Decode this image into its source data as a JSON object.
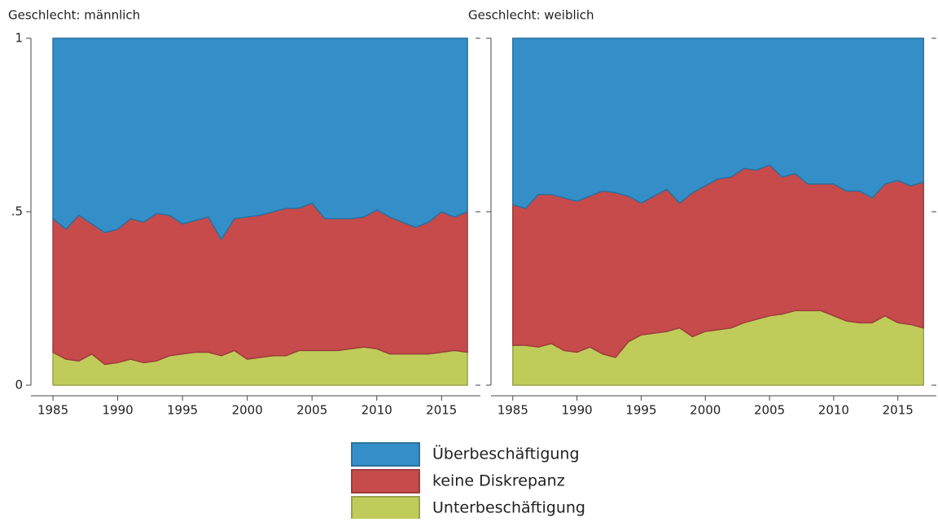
{
  "chart_data": [
    {
      "type": "area",
      "stacked": true,
      "title": "Geschlecht: männlich",
      "x": [
        1985,
        1986,
        1987,
        1988,
        1989,
        1990,
        1991,
        1992,
        1993,
        1994,
        1995,
        1996,
        1997,
        1998,
        1999,
        2000,
        2001,
        2002,
        2003,
        2004,
        2005,
        2006,
        2007,
        2008,
        2009,
        2010,
        2011,
        2012,
        2013,
        2014,
        2015,
        2016,
        2017
      ],
      "series": [
        {
          "name": "Unterbeschäftigung",
          "color": "#c0cc5a",
          "values": [
            0.095,
            0.075,
            0.07,
            0.09,
            0.06,
            0.065,
            0.075,
            0.065,
            0.07,
            0.085,
            0.09,
            0.095,
            0.095,
            0.085,
            0.1,
            0.075,
            0.08,
            0.085,
            0.085,
            0.1,
            0.1,
            0.1,
            0.1,
            0.105,
            0.11,
            0.105,
            0.09,
            0.09,
            0.09,
            0.09,
            0.095,
            0.1,
            0.095
          ]
        },
        {
          "name": "keine Diskrepanz",
          "color": "#c74b4b",
          "values": [
            0.385,
            0.375,
            0.42,
            0.375,
            0.38,
            0.385,
            0.405,
            0.405,
            0.425,
            0.405,
            0.375,
            0.38,
            0.39,
            0.335,
            0.38,
            0.41,
            0.41,
            0.415,
            0.425,
            0.41,
            0.425,
            0.38,
            0.38,
            0.375,
            0.375,
            0.4,
            0.395,
            0.38,
            0.365,
            0.38,
            0.405,
            0.385,
            0.405
          ]
        },
        {
          "name": "Überbeschäftigung",
          "color": "#348fc8",
          "values": [
            0.52,
            0.55,
            0.51,
            0.535,
            0.56,
            0.55,
            0.52,
            0.53,
            0.505,
            0.51,
            0.535,
            0.525,
            0.515,
            0.58,
            0.52,
            0.515,
            0.51,
            0.5,
            0.49,
            0.49,
            0.475,
            0.52,
            0.52,
            0.52,
            0.515,
            0.495,
            0.515,
            0.53,
            0.545,
            0.53,
            0.5,
            0.515,
            0.5
          ]
        }
      ],
      "xlim": [
        1983.3,
        2018
      ],
      "xticks": [
        1985,
        1990,
        1995,
        2000,
        2005,
        2010,
        2015
      ],
      "ylim": [
        0,
        1
      ],
      "yticks": [
        0,
        {
          "value": 0.5,
          "label": ".5"
        },
        1
      ]
    },
    {
      "type": "area",
      "stacked": true,
      "title": "Geschlecht: weiblich",
      "x": [
        1985,
        1986,
        1987,
        1988,
        1989,
        1990,
        1991,
        1992,
        1993,
        1994,
        1995,
        1996,
        1997,
        1998,
        1999,
        2000,
        2001,
        2002,
        2003,
        2004,
        2005,
        2006,
        2007,
        2008,
        2009,
        2010,
        2011,
        2012,
        2013,
        2014,
        2015,
        2016,
        2017
      ],
      "series": [
        {
          "color": "#c0cc5a",
          "values": [
            0.115,
            0.115,
            0.11,
            0.12,
            0.1,
            0.095,
            0.11,
            0.09,
            0.08,
            0.125,
            0.145,
            0.15,
            0.155,
            0.165,
            0.14,
            0.155,
            0.16,
            0.165,
            0.18,
            0.19,
            0.2,
            0.205,
            0.215,
            0.215,
            0.215,
            0.2,
            0.185,
            0.18,
            0.18,
            0.2,
            0.18,
            0.175,
            0.165
          ]
        },
        {
          "color": "#c74b4b",
          "values": [
            0.405,
            0.395,
            0.44,
            0.43,
            0.44,
            0.435,
            0.435,
            0.47,
            0.475,
            0.42,
            0.38,
            0.395,
            0.41,
            0.36,
            0.415,
            0.42,
            0.435,
            0.435,
            0.445,
            0.43,
            0.435,
            0.395,
            0.395,
            0.365,
            0.365,
            0.38,
            0.375,
            0.38,
            0.36,
            0.38,
            0.41,
            0.4,
            0.42
          ]
        },
        {
          "color": "#348fc8",
          "values": [
            0.48,
            0.49,
            0.45,
            0.45,
            0.46,
            0.47,
            0.455,
            0.44,
            0.445,
            0.455,
            0.475,
            0.455,
            0.435,
            0.475,
            0.445,
            0.425,
            0.405,
            0.4,
            0.375,
            0.38,
            0.365,
            0.4,
            0.39,
            0.42,
            0.42,
            0.42,
            0.44,
            0.44,
            0.46,
            0.42,
            0.41,
            0.425,
            0.415
          ]
        }
      ],
      "xlim": [
        1983.3,
        2018
      ],
      "xticks": [
        1985,
        1990,
        1995,
        2000,
        2005,
        2010,
        2015
      ],
      "ylim": [
        0,
        1
      ],
      "yticks": [
        0,
        {
          "value": 0.5,
          "label": ".5"
        },
        1
      ]
    }
  ]
}
